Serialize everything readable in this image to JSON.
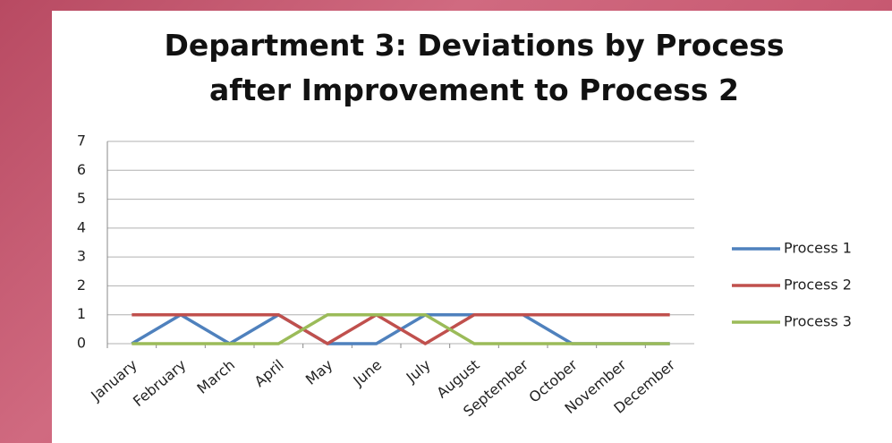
{
  "chart_data": {
    "type": "line",
    "title": "Department 3: Deviations by Process after Improvement to Process 2",
    "categories": [
      "January",
      "February",
      "March",
      "April",
      "May",
      "June",
      "July",
      "August",
      "September",
      "October",
      "November",
      "December"
    ],
    "series": [
      {
        "name": "Process 1",
        "color": "#4f81bd",
        "values": [
          0,
          1,
          0,
          1,
          0,
          0,
          1,
          1,
          1,
          0,
          0,
          0
        ]
      },
      {
        "name": "Process 2",
        "color": "#c0504d",
        "values": [
          1,
          1,
          1,
          1,
          0,
          1,
          0,
          1,
          1,
          1,
          1,
          1
        ]
      },
      {
        "name": "Process 3",
        "color": "#9bbb59",
        "values": [
          0,
          0,
          0,
          0,
          1,
          1,
          1,
          0,
          0,
          0,
          0,
          0
        ]
      }
    ],
    "ylim": [
      0,
      7
    ],
    "yticks": [
      0,
      1,
      2,
      3,
      4,
      5,
      6,
      7
    ],
    "grid": true,
    "legend": "right"
  }
}
